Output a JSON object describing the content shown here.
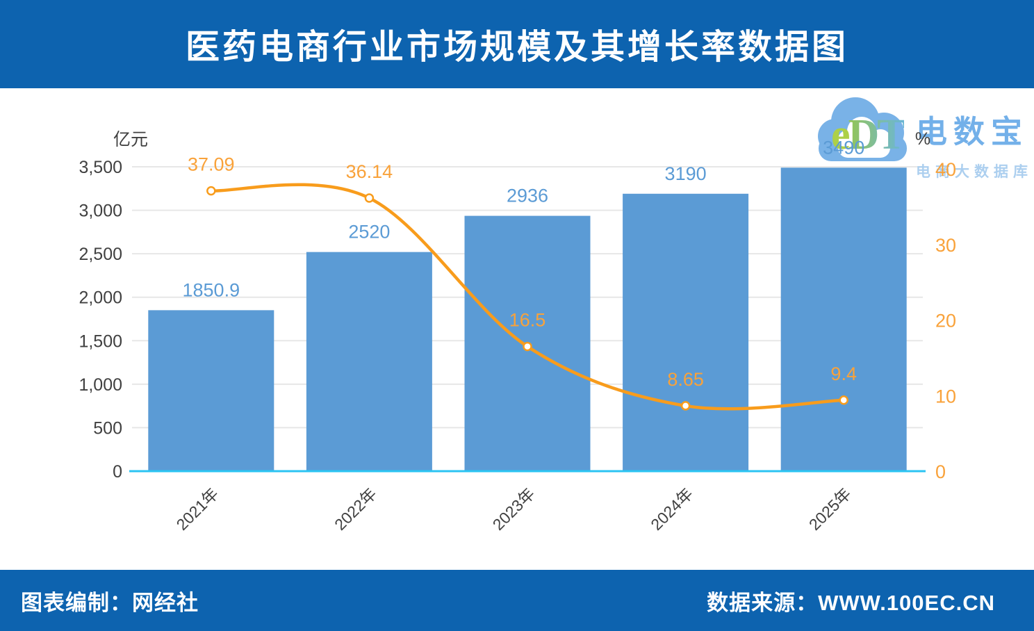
{
  "colors": {
    "banner": "#0D63AF",
    "bar": "#5B9BD5",
    "bar-label": "#5B9BD5",
    "line": "#F89C1C",
    "line-label": "#F9A23A",
    "grid": "#E7E7E7",
    "axis-text": "#404040",
    "right-axis-text": "#F9A23A",
    "baseline": "#2BC4F3",
    "cloud": "#72AEE6",
    "brand-text": "#6CACE8",
    "tagline-text": "#A8CDEF"
  },
  "header": {
    "title": "医药电商行业市场规模及其增长率数据图"
  },
  "footer": {
    "left": "图表编制：网经社",
    "right": "数据来源：WWW.100EC.CN"
  },
  "logo": {
    "monogram_e": "e",
    "monogram_dt": "DT",
    "brand": "电数宝",
    "tagline": "电商大数据库"
  },
  "chart_data": {
    "type": "combo",
    "categories": [
      "2021年",
      "2022年",
      "2023年",
      "2024年",
      "2025年"
    ],
    "series": [
      {
        "type": "bar",
        "axis": "left",
        "values": [
          1850.9,
          2520,
          2936,
          3190,
          3490
        ],
        "labels": [
          "1850.9",
          "2520",
          "2936",
          "3190",
          "3490"
        ]
      },
      {
        "type": "line",
        "axis": "right",
        "values": [
          37.09,
          36.14,
          16.5,
          8.65,
          9.4
        ],
        "labels": [
          "37.09",
          "36.14",
          "16.5",
          "8.65",
          "9.4"
        ]
      }
    ],
    "left_axis": {
      "title": "亿元",
      "min": 0,
      "max": 3500,
      "step": 500,
      "tick_labels": [
        "0",
        "500",
        "1,000",
        "1,500",
        "2,000",
        "2,500",
        "3,000",
        "3,500"
      ]
    },
    "right_axis": {
      "title": "%",
      "min": 0,
      "max": 40,
      "step": 10,
      "tick_labels": [
        "0",
        "10",
        "20",
        "30",
        "40"
      ]
    },
    "grid": true,
    "legend": false
  }
}
